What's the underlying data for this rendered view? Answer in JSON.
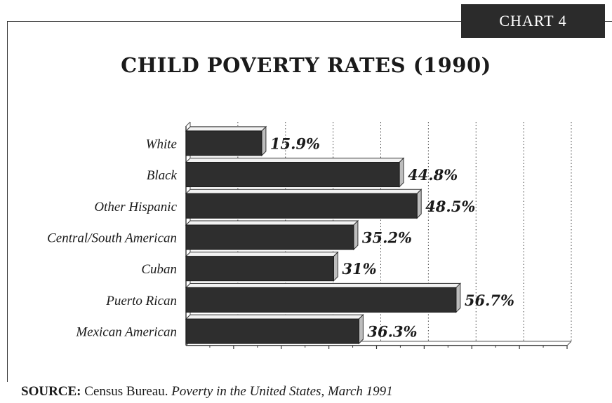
{
  "badge": "CHART 4",
  "chart_data": {
    "type": "bar",
    "orientation": "horizontal",
    "title": "CHILD POVERTY RATES (1990)",
    "categories": [
      "White",
      "Black",
      "Other Hispanic",
      "Central/South American",
      "Cuban",
      "Puerto Rican",
      "Mexican American"
    ],
    "values": [
      15.9,
      44.8,
      48.5,
      35.2,
      31,
      56.7,
      36.3
    ],
    "value_labels": [
      "15.9%",
      "44.8%",
      "48.5%",
      "35.2%",
      "31%",
      "56.7%",
      "36.3%"
    ],
    "xlim": [
      0,
      80
    ],
    "grid": "vertical-dotted",
    "bar_color": "#2e2e2e"
  },
  "source": {
    "label": "SOURCE:",
    "text": " Census Bureau.  ",
    "title": "Poverty in the United States, March 1991"
  }
}
